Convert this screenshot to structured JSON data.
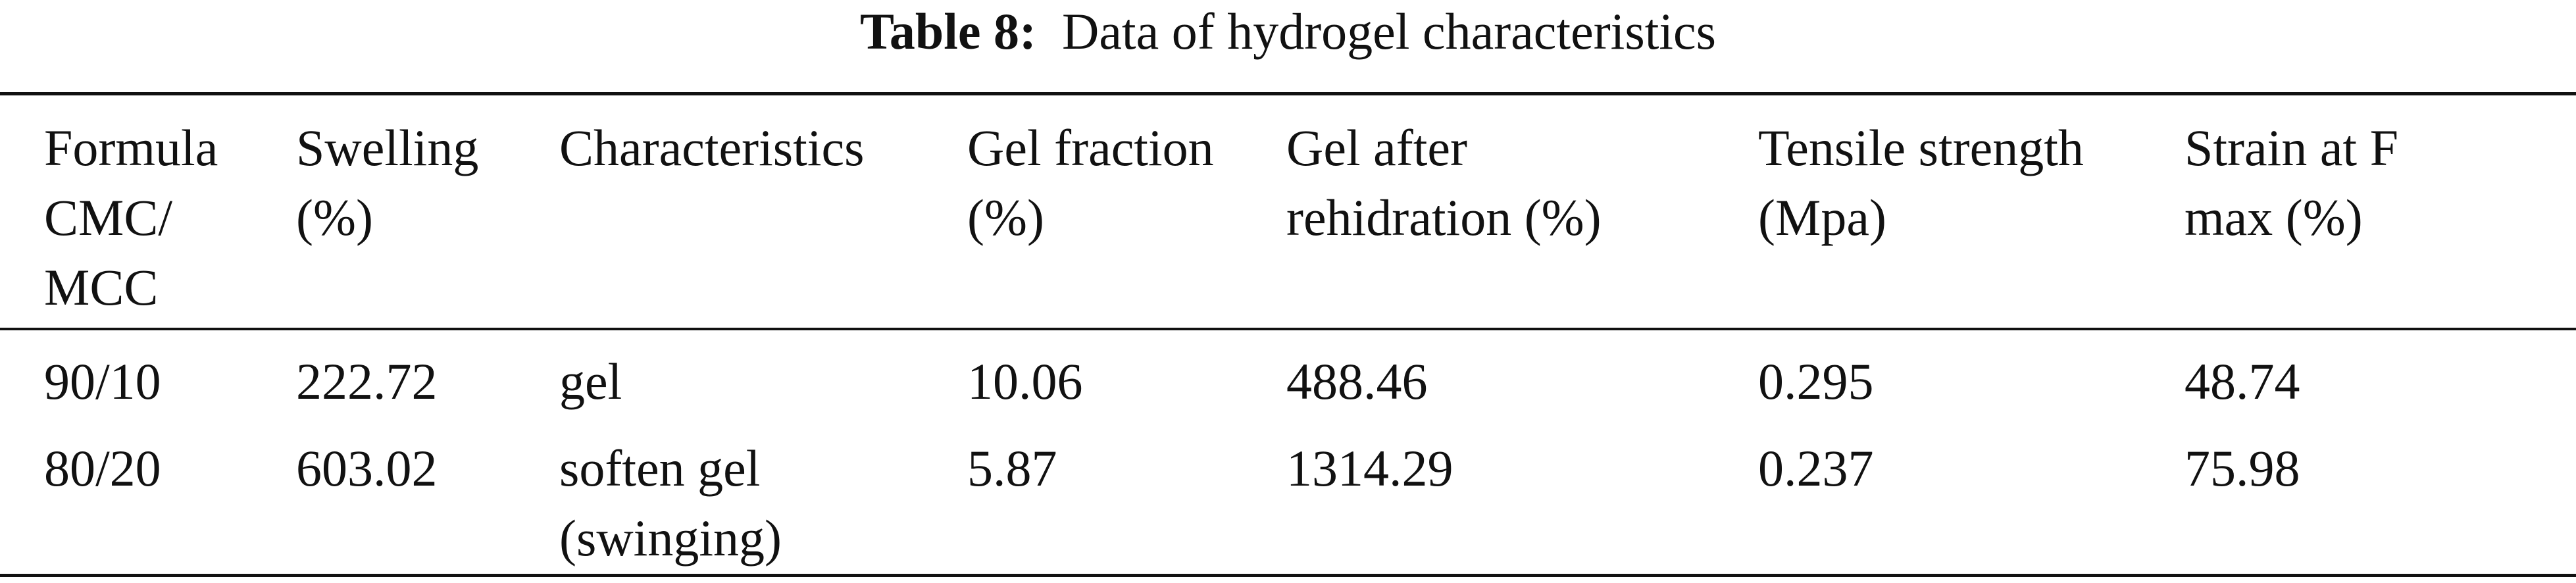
{
  "title": {
    "label": "Table 8:",
    "text": "Data of hydrogel characteristics"
  },
  "table": {
    "header": [
      "Formula CMC/ MCC",
      "Swelling (%)",
      "Characteristics",
      "Gel fraction (%)",
      "Gel after rehidration (%)",
      "Tensile strength (Mpa)",
      "Strain at F max (%)"
    ],
    "rows": [
      [
        "90/10",
        "222.72",
        "gel",
        "10.06",
        "488.46",
        "0.295",
        "48.74"
      ],
      [
        "80/20",
        "603.02",
        "soften gel (swinging)",
        "5.87",
        "1314.29",
        "0.237",
        "75.98"
      ]
    ]
  }
}
